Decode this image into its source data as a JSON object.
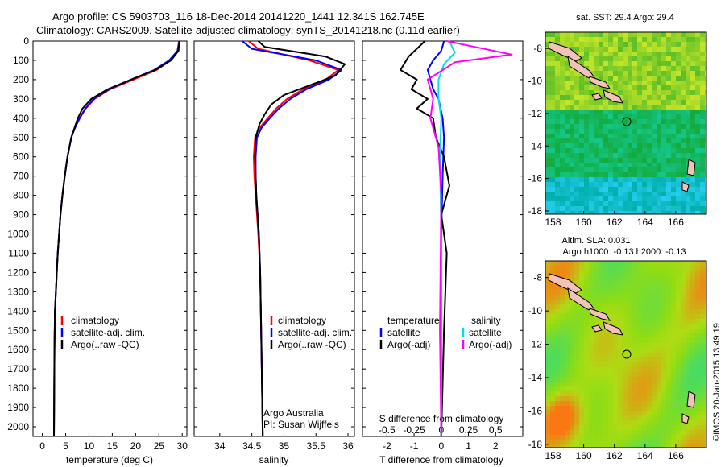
{
  "header": {
    "line1": "Argo profile: CS 5903703_116 18-Dec-2014 20141220_1441 12.341S 162.745E",
    "line2": "Climatology: CARS2009. Satellite-adjusted climatology: synTS_20141218.nc (0.11d earlier)"
  },
  "chart_data": [
    {
      "type": "line",
      "xlabel": "temperature (deg C)",
      "ylabel": "",
      "xlim": [
        -2,
        31
      ],
      "ylim": [
        2050,
        0
      ],
      "xticks": [
        0,
        5,
        10,
        15,
        20,
        25,
        30
      ],
      "yticks": [
        0,
        100,
        200,
        300,
        400,
        500,
        600,
        700,
        800,
        900,
        1000,
        1100,
        1200,
        1300,
        1400,
        1500,
        1600,
        1700,
        1800,
        1900,
        2000
      ],
      "legend": {
        "placement": "lower-middle",
        "entries": [
          "climatology",
          "satellite-adj. clim.",
          "Argo(..raw -QC)"
        ]
      },
      "series": [
        {
          "name": "climatology",
          "color": "#ff0000",
          "x": [
            29.3,
            29.0,
            27.5,
            24.5,
            19.5,
            14.5,
            11.2,
            9.3,
            8.0,
            7.0,
            6.2,
            5.4,
            4.8,
            4.3,
            3.9,
            3.6,
            3.3,
            3.1,
            2.9,
            2.7,
            2.6,
            2.5
          ],
          "y": [
            0,
            50,
            100,
            150,
            200,
            250,
            300,
            350,
            400,
            450,
            500,
            600,
            700,
            800,
            900,
            1000,
            1100,
            1200,
            1300,
            1400,
            1600,
            2050
          ]
        },
        {
          "name": "satellite-adj. clim.",
          "color": "#0000ff",
          "x": [
            29.4,
            29.0,
            27.2,
            24.0,
            19.0,
            14.3,
            11.0,
            9.2,
            8.0,
            7.0,
            6.2,
            5.4,
            4.8,
            4.3,
            3.9,
            3.6,
            3.3,
            3.1,
            2.9,
            2.7,
            2.6,
            2.5
          ],
          "y": [
            0,
            50,
            100,
            150,
            200,
            250,
            300,
            350,
            400,
            450,
            500,
            600,
            700,
            800,
            900,
            1000,
            1100,
            1200,
            1300,
            1400,
            1600,
            2050
          ]
        },
        {
          "name": "Argo(..raw -QC)",
          "color": "#000000",
          "x": [
            29.4,
            29.2,
            27.6,
            24.2,
            19.0,
            14.0,
            10.5,
            8.6,
            7.6,
            6.9,
            6.2,
            5.4,
            4.8,
            4.3,
            3.9,
            3.6,
            3.3,
            3.1,
            2.9,
            2.7,
            2.6,
            2.5
          ],
          "y": [
            0,
            50,
            100,
            150,
            200,
            250,
            300,
            350,
            400,
            450,
            500,
            600,
            700,
            800,
            900,
            1000,
            1100,
            1200,
            1300,
            1400,
            1600,
            2050
          ]
        }
      ]
    },
    {
      "type": "line",
      "xlabel": "salinity",
      "xlim": [
        33.6,
        36.1
      ],
      "ylim": [
        2050,
        0
      ],
      "xticks": [
        34,
        34.5,
        35,
        35.5,
        36
      ],
      "legend": {
        "placement": "lower-right",
        "entries": [
          "climatology",
          "satellite-adj. clim.",
          "Argo(..raw -QC)"
        ]
      },
      "annotations": [
        "Argo Australia",
        "PI: Susan Wijffels"
      ],
      "series": [
        {
          "name": "climatology",
          "color": "#ff0000",
          "x": [
            34.45,
            34.6,
            35.4,
            35.85,
            35.65,
            35.3,
            35.05,
            34.88,
            34.75,
            34.62,
            34.55,
            34.53,
            34.54,
            34.56,
            34.58,
            34.6,
            34.63,
            34.65,
            34.67
          ],
          "y": [
            0,
            40,
            100,
            150,
            200,
            250,
            300,
            350,
            400,
            450,
            500,
            600,
            700,
            800,
            900,
            1000,
            1200,
            1600,
            2050
          ]
        },
        {
          "name": "satellite-adj. clim.",
          "color": "#0000ff",
          "x": [
            34.35,
            34.5,
            35.5,
            35.9,
            35.7,
            35.35,
            35.1,
            34.92,
            34.78,
            34.65,
            34.58,
            34.56,
            34.56,
            34.57,
            34.59,
            34.61,
            34.63,
            34.65,
            34.67
          ],
          "y": [
            0,
            40,
            100,
            150,
            200,
            250,
            300,
            350,
            400,
            450,
            500,
            600,
            700,
            800,
            900,
            1000,
            1200,
            1600,
            2050
          ]
        },
        {
          "name": "Argo(..raw -QC)",
          "color": "#000000",
          "x": [
            34.6,
            34.7,
            35.65,
            35.95,
            35.8,
            35.4,
            35.0,
            34.8,
            34.7,
            34.62,
            34.56,
            34.55,
            34.56,
            34.57,
            34.59,
            34.61,
            34.63,
            34.65,
            34.67
          ],
          "y": [
            0,
            30,
            80,
            120,
            180,
            230,
            280,
            330,
            380,
            430,
            500,
            600,
            700,
            800,
            900,
            1000,
            1200,
            1600,
            2050
          ]
        }
      ]
    },
    {
      "type": "line",
      "xlabel": "T difference from climatology",
      "xlabel2": "S difference from climatology",
      "xlim": [
        -2.9,
        3.0
      ],
      "ylim": [
        2050,
        0
      ],
      "xticks": [
        -2,
        -1,
        0,
        1,
        2
      ],
      "xticks2": [
        "-0.5",
        "-0.25",
        "0",
        "0.25",
        "0.5"
      ],
      "legend": {
        "placement": "lower",
        "headers": [
          "temperature",
          "salinity"
        ],
        "entries": [
          "satellite",
          "Argo(-adj)",
          "satellite",
          "Argo(-adj)"
        ]
      },
      "series": [
        {
          "name": "satellite",
          "color": "#0000ff",
          "x": [
            0.1,
            0.0,
            -0.3,
            -0.5,
            -0.4,
            -0.3,
            -0.1,
            0.05,
            0.1,
            0.05,
            0.0,
            0.0,
            0.0
          ],
          "y": [
            0,
            50,
            100,
            150,
            200,
            250,
            300,
            400,
            500,
            700,
            1000,
            1500,
            2050
          ]
        },
        {
          "name": "Argo(-adj)",
          "color": "#000000",
          "x": [
            -0.6,
            -1.2,
            -1.5,
            -0.9,
            -1.1,
            -0.5,
            -0.9,
            -0.3,
            -0.2,
            0.1,
            0.3,
            0.0,
            0.2,
            0.1,
            0.0
          ],
          "y": [
            0,
            80,
            150,
            200,
            250,
            300,
            350,
            400,
            500,
            600,
            750,
            900,
            1100,
            1500,
            2050
          ]
        },
        {
          "name": "satellite",
          "color": "#00e0e0",
          "x": [
            0.3,
            0.5,
            0.1,
            -0.1,
            -0.1,
            0.0,
            -0.05,
            0.0,
            0.0,
            0.0
          ],
          "y": [
            0,
            60,
            120,
            200,
            300,
            400,
            600,
            1000,
            1500,
            2050
          ]
        },
        {
          "name": "Argo(-adj)",
          "color": "#ff00ff",
          "x": [
            0.2,
            2.6,
            0.5,
            -0.5,
            -0.3,
            -0.4,
            -0.1,
            0.0,
            -0.05,
            0.0
          ],
          "y": [
            0,
            70,
            110,
            200,
            300,
            400,
            550,
            800,
            1500,
            2050
          ]
        }
      ]
    },
    {
      "type": "heatmap",
      "title": "sat. SST: 29.4 Argo: 29.4",
      "xlim": [
        157.5,
        168
      ],
      "ylim": [
        -18.2,
        -7
      ],
      "xticks": [
        158,
        160,
        162,
        164,
        166
      ],
      "yticks": [
        -8,
        -10,
        -12,
        -14,
        -16,
        -18
      ],
      "marker": {
        "lon": 162.745,
        "lat": -12.341
      }
    },
    {
      "type": "heatmap",
      "title": "Altim. SLA: 0.031",
      "subtitle": "Argo h1000: -0.13 h2000: -0.13",
      "xlim": [
        157.5,
        168
      ],
      "ylim": [
        -18.2,
        -7
      ],
      "xticks": [
        158,
        160,
        162,
        164,
        166
      ],
      "yticks": [
        -8,
        -10,
        -12,
        -14,
        -16,
        -18
      ],
      "marker": {
        "lon": 162.745,
        "lat": -12.341
      }
    }
  ],
  "credit": "©IMOS 20-Jan-2015 13:49:19"
}
